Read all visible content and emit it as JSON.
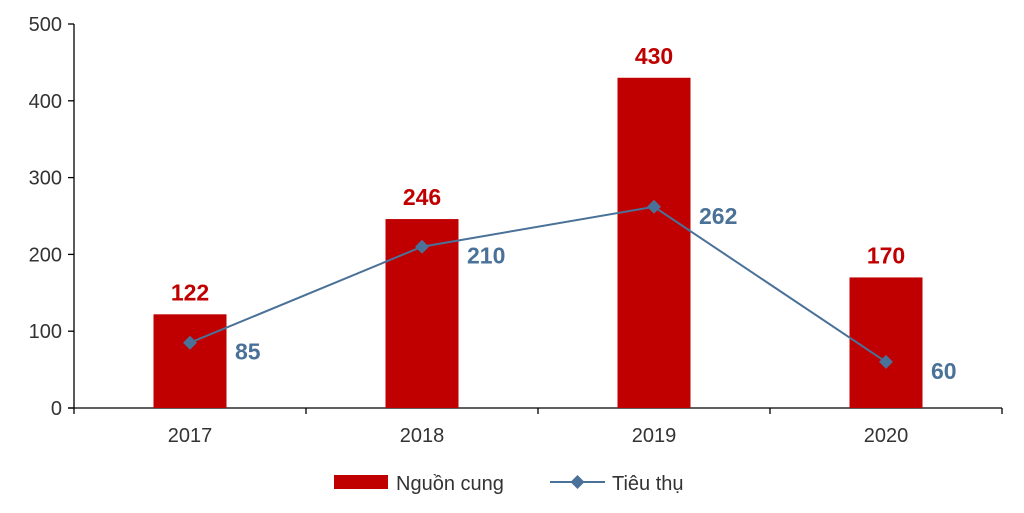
{
  "chart_data": {
    "type": "bar",
    "categories": [
      "2017",
      "2018",
      "2019",
      "2020"
    ],
    "series": [
      {
        "name": "Nguồn cung",
        "kind": "bar",
        "values": [
          122,
          246,
          430,
          170
        ],
        "color": "#c00000"
      },
      {
        "name": "Tiêu thụ",
        "kind": "line",
        "values": [
          85,
          210,
          262,
          60
        ],
        "color": "#4a7197"
      }
    ],
    "ylim": [
      0,
      500
    ],
    "yticks": [
      0,
      100,
      200,
      300,
      400,
      500
    ],
    "grid": false,
    "legend": "bottom-center"
  }
}
